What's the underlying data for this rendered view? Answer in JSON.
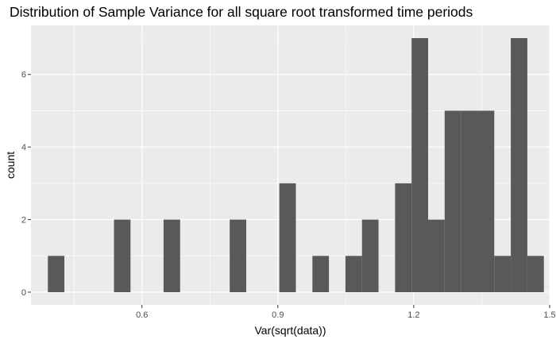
{
  "chart_data": {
    "type": "bar",
    "title": "Distribution of Sample Variance for all square root transformed time periods",
    "xlabel": "Var(sqrt(data))",
    "ylabel": "count",
    "bin_width": 0.0365,
    "bins": [
      {
        "x": 0.4105,
        "count": 1
      },
      {
        "x": 0.447,
        "count": 0
      },
      {
        "x": 0.4835,
        "count": 0
      },
      {
        "x": 0.52,
        "count": 0
      },
      {
        "x": 0.5565,
        "count": 2
      },
      {
        "x": 0.593,
        "count": 0
      },
      {
        "x": 0.6295,
        "count": 0
      },
      {
        "x": 0.666,
        "count": 2
      },
      {
        "x": 0.7025,
        "count": 0
      },
      {
        "x": 0.739,
        "count": 0
      },
      {
        "x": 0.7755,
        "count": 0
      },
      {
        "x": 0.812,
        "count": 2
      },
      {
        "x": 0.8485,
        "count": 0
      },
      {
        "x": 0.885,
        "count": 0
      },
      {
        "x": 0.9215,
        "count": 3
      },
      {
        "x": 0.958,
        "count": 0
      },
      {
        "x": 0.9945,
        "count": 1
      },
      {
        "x": 1.031,
        "count": 0
      },
      {
        "x": 1.0675,
        "count": 1
      },
      {
        "x": 1.104,
        "count": 2
      },
      {
        "x": 1.1405,
        "count": 0
      },
      {
        "x": 1.177,
        "count": 3
      },
      {
        "x": 1.2135,
        "count": 7
      },
      {
        "x": 1.25,
        "count": 2
      },
      {
        "x": 1.2865,
        "count": 5
      },
      {
        "x": 1.323,
        "count": 5
      },
      {
        "x": 1.3595,
        "count": 5
      },
      {
        "x": 1.396,
        "count": 1
      },
      {
        "x": 1.4325,
        "count": 7
      },
      {
        "x": 1.469,
        "count": 1
      }
    ],
    "xlim": [
      0.355,
      1.5
    ],
    "ylim": [
      -0.35,
      7.35
    ],
    "xticks": [
      {
        "value": 0.6,
        "label": "0.6"
      },
      {
        "value": 0.9,
        "label": "0.9"
      },
      {
        "value": 1.2,
        "label": "1.2"
      },
      {
        "value": 1.5,
        "label": "1.5"
      }
    ],
    "yticks": [
      {
        "value": 0,
        "label": "0"
      },
      {
        "value": 2,
        "label": "2"
      },
      {
        "value": 4,
        "label": "4"
      },
      {
        "value": 6,
        "label": "6"
      }
    ],
    "grid": true,
    "legend": "none"
  },
  "colors": {
    "panel_background": "#ebebeb",
    "grid_major": "#ffffff",
    "bar_fill": "#595959",
    "tick_text": "#4d4d4d",
    "tick_mark": "#333333",
    "text": "#000000"
  }
}
